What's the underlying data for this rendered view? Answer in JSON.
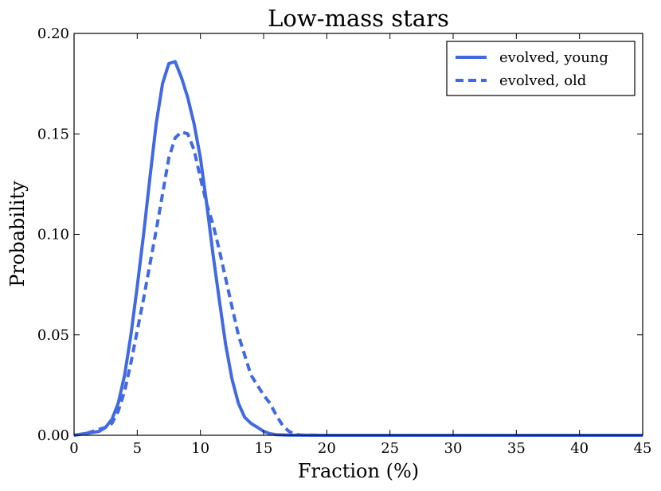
{
  "chart_data": {
    "type": "line",
    "title": "Low-mass stars",
    "xlabel": "Fraction (%)",
    "ylabel": "Probability",
    "xlim": [
      0,
      45
    ],
    "ylim": [
      0,
      0.2
    ],
    "x_ticks": [
      0,
      5,
      10,
      15,
      20,
      25,
      30,
      35,
      40,
      45
    ],
    "x_tick_labels": [
      "0",
      "5",
      "10",
      "15",
      "20",
      "25",
      "30",
      "35",
      "40",
      "45"
    ],
    "y_ticks": [
      0,
      0.05,
      0.1,
      0.15,
      0.2
    ],
    "y_tick_labels": [
      "0.00",
      "0.05",
      "0.10",
      "0.15",
      "0.20"
    ],
    "grid": false,
    "legend_position": "top-right",
    "color": "#4169E1",
    "series": [
      {
        "name": "evolved, young",
        "style": "solid",
        "x": [
          0,
          1,
          2,
          2.5,
          3,
          3.5,
          4,
          4.5,
          5,
          5.5,
          6,
          6.5,
          7,
          7.5,
          8,
          8.5,
          9,
          9.5,
          10,
          10.5,
          11,
          11.5,
          12,
          12.5,
          13,
          13.5,
          14,
          14.5,
          15,
          15.5,
          16,
          17,
          20,
          45
        ],
        "y": [
          0,
          0.001,
          0.002,
          0.004,
          0.008,
          0.016,
          0.03,
          0.05,
          0.074,
          0.1,
          0.128,
          0.155,
          0.175,
          0.185,
          0.186,
          0.178,
          0.168,
          0.155,
          0.138,
          0.115,
          0.09,
          0.067,
          0.045,
          0.028,
          0.016,
          0.009,
          0.006,
          0.004,
          0.002,
          0.0008,
          0.0003,
          0.0001,
          0,
          0
        ]
      },
      {
        "name": "evolved, old",
        "style": "dashed",
        "x": [
          0,
          1,
          2,
          2.5,
          3,
          3.5,
          4,
          4.5,
          5,
          5.5,
          6,
          6.5,
          7,
          7.5,
          8,
          8.5,
          9,
          9.5,
          10,
          10.5,
          11,
          11.5,
          12,
          12.5,
          13,
          13.5,
          14,
          14.5,
          15,
          15.5,
          16,
          16.5,
          17,
          17.5,
          18,
          20,
          45
        ],
        "y": [
          0,
          0.001,
          0.003,
          0.004,
          0.006,
          0.012,
          0.022,
          0.036,
          0.052,
          0.068,
          0.085,
          0.102,
          0.12,
          0.138,
          0.148,
          0.151,
          0.15,
          0.142,
          0.128,
          0.115,
          0.105,
          0.092,
          0.078,
          0.064,
          0.05,
          0.04,
          0.03,
          0.025,
          0.02,
          0.016,
          0.01,
          0.005,
          0.002,
          0.0005,
          0.0001,
          0,
          0
        ]
      }
    ]
  }
}
